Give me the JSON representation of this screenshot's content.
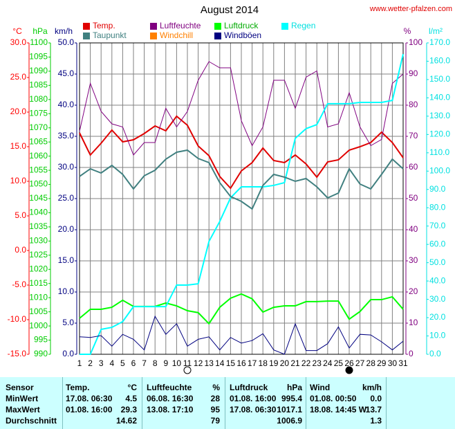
{
  "chart_data": {
    "type": "line",
    "title": "August 2014",
    "source": "www.wetter-pfalzen.com",
    "x": [
      1,
      2,
      3,
      4,
      5,
      6,
      7,
      8,
      9,
      10,
      11,
      12,
      13,
      14,
      15,
      16,
      17,
      18,
      19,
      20,
      21,
      22,
      23,
      24,
      25,
      26,
      27,
      28,
      29,
      30,
      31
    ],
    "xlim": [
      1,
      31
    ],
    "ylabel": "°C",
    "ylim": [
      -15,
      30
    ],
    "yticks": [
      {
        "value": -15,
        "label": "-15.0"
      },
      {
        "value": -10,
        "label": "-10.0"
      },
      {
        "value": -5,
        "label": "-5.0"
      },
      {
        "value": 0,
        "label": "0.0"
      },
      {
        "value": 5,
        "label": "5.0"
      },
      {
        "value": 10,
        "label": "10.0"
      },
      {
        "value": 15,
        "label": "15.0"
      },
      {
        "value": 20,
        "label": "20.0"
      },
      {
        "value": 25,
        "label": "25.0"
      },
      {
        "value": 30,
        "label": "30.0"
      }
    ],
    "y2label": "hPa",
    "y2lim": [
      990,
      1100
    ],
    "y2ticks": [
      990,
      995,
      1000,
      1005,
      1010,
      1015,
      1020,
      1025,
      1030,
      1035,
      1040,
      1045,
      1050,
      1055,
      1060,
      1065,
      1070,
      1075,
      1080,
      1085,
      1090,
      1095,
      1100
    ],
    "y3label": "km/h",
    "y3lim": [
      0,
      50
    ],
    "y3ticks": [
      {
        "value": 0,
        "label": "0.0"
      },
      {
        "value": 5,
        "label": "5.0"
      },
      {
        "value": 10,
        "label": "10.0"
      },
      {
        "value": 15,
        "label": "15.0"
      },
      {
        "value": 20,
        "label": "20.0"
      },
      {
        "value": 25,
        "label": "25.0"
      },
      {
        "value": 30,
        "label": "30.0"
      },
      {
        "value": 35,
        "label": "35.0"
      },
      {
        "value": 40,
        "label": "40.0"
      },
      {
        "value": 45,
        "label": "45.0"
      },
      {
        "value": 50,
        "label": "50.0"
      }
    ],
    "y4label": "%",
    "y4lim": [
      0,
      100
    ],
    "y4ticks": [
      0,
      10,
      20,
      30,
      40,
      50,
      60,
      70,
      80,
      90,
      100
    ],
    "y5label": "l/m²",
    "y5lim": [
      0,
      170
    ],
    "y5ticks": [
      {
        "value": 0,
        "label": "0.0"
      },
      {
        "value": 10,
        "label": "10.0"
      },
      {
        "value": 20,
        "label": "20.0"
      },
      {
        "value": 30,
        "label": "30.0"
      },
      {
        "value": 40,
        "label": "40.0"
      },
      {
        "value": 50,
        "label": "50.0"
      },
      {
        "value": 60,
        "label": "60.0"
      },
      {
        "value": 70,
        "label": "70.0"
      },
      {
        "value": 80,
        "label": "80.0"
      },
      {
        "value": 90,
        "label": "90.0"
      },
      {
        "value": 100,
        "label": "100.0"
      },
      {
        "value": 110,
        "label": "110.0"
      },
      {
        "value": 120,
        "label": "120.0"
      },
      {
        "value": 130,
        "label": "130.0"
      },
      {
        "value": 140,
        "label": "140.0"
      },
      {
        "value": 150,
        "label": "150.0"
      },
      {
        "value": 160,
        "label": "160.0"
      },
      {
        "value": 170,
        "label": "170.0"
      }
    ],
    "axis_colors": {
      "y": "#ff0000",
      "y2": "#00cc00",
      "y3": "#000080",
      "y4": "#800080",
      "y5": "#00e0e0"
    },
    "grid": "y3",
    "series": [
      {
        "name": "Temp.",
        "color": "#e00000",
        "axis": "y",
        "values": [
          17.0,
          13.8,
          15.5,
          17.4,
          15.7,
          16.0,
          16.9,
          18.0,
          17.3,
          19.4,
          18.1,
          15.1,
          13.7,
          10.7,
          9.0,
          11.5,
          12.7,
          14.8,
          13.0,
          12.7,
          13.8,
          12.5,
          10.6,
          12.8,
          13.1,
          14.5,
          15.0,
          15.6,
          17.1,
          15.6,
          13.4
        ]
      },
      {
        "name": "Luftfeuchte",
        "color": "#800080",
        "axis": "y4",
        "values": [
          71.6,
          87,
          78,
          74,
          73,
          64,
          68,
          68,
          79,
          73,
          78,
          88,
          94,
          92,
          92,
          75,
          67,
          73,
          88,
          88,
          79,
          89,
          91,
          73,
          74,
          84,
          73,
          67,
          69,
          87,
          90
        ]
      },
      {
        "name": "Luftdruck",
        "color": "#00ff00",
        "axis": "y2",
        "values": [
          1002.7,
          1005.9,
          1005.9,
          1006.6,
          1009.1,
          1006.9,
          1006.9,
          1006.9,
          1008.1,
          1007.1,
          1005.4,
          1004.7,
          1000.8,
          1006.6,
          1009.8,
          1011.3,
          1009.6,
          1004.9,
          1006.6,
          1007.1,
          1007.1,
          1008.6,
          1008.6,
          1008.8,
          1008.8,
          1002.4,
          1005.1,
          1009.3,
          1009.3,
          1010.3,
          1005.9
        ]
      },
      {
        "name": "Regen",
        "color": "#00ffff",
        "axis": "y5",
        "values": [
          0,
          0,
          13.6,
          14.7,
          17.8,
          26,
          26,
          26,
          26,
          37.8,
          37.8,
          38.5,
          61.6,
          72.5,
          85.4,
          91.4,
          91.4,
          91.4,
          92.2,
          93.7,
          117.9,
          123.2,
          125.4,
          136.8,
          136.8,
          136.8,
          137.5,
          137.5,
          137.5,
          138.6,
          163.9
        ]
      },
      {
        "name": "Taupunkt",
        "color": "#408080",
        "axis": "y",
        "values": [
          10.7,
          11.8,
          11.2,
          12.3,
          11.0,
          8.9,
          10.8,
          11.6,
          13.2,
          14.2,
          14.5,
          13.3,
          12.7,
          9.8,
          7.8,
          7.1,
          6.0,
          9.4,
          11.0,
          10.6,
          10.0,
          10.4,
          9.2,
          7.6,
          8.3,
          11.8,
          9.6,
          8.9,
          11.0,
          13.2,
          11.8
        ]
      },
      {
        "name": "Windchill",
        "color": "#ff8000",
        "axis": "y"
      },
      {
        "name": "Windböen",
        "color": "#000080",
        "axis": "y3",
        "values": [
          2.8,
          2.7,
          3.0,
          1.3,
          3.2,
          2.4,
          0.7,
          6.1,
          3.2,
          4.9,
          1.3,
          2.4,
          2.8,
          0.7,
          2.7,
          1.8,
          2.2,
          3.3,
          0.7,
          0,
          4.9,
          0.6,
          0.6,
          1.7,
          4.4,
          1.0,
          3.2,
          3.1,
          2.0,
          0.7,
          2.1
        ]
      }
    ]
  },
  "table": {
    "header": [
      "Sensor",
      "Temp.",
      "°C",
      "Luftfeuchte",
      "%",
      "Luftdruck",
      "hPa",
      "Wind",
      "km/h"
    ],
    "rows": [
      [
        "MinWert",
        "17.08. 06:30",
        "4.5",
        "06.08. 16:30",
        "28",
        "01.08. 16:00",
        "995.4",
        "01.08. 00:50",
        "0.0"
      ],
      [
        "MaxWert",
        "01.08. 16:00",
        "29.3",
        "13.08. 17:10",
        "95",
        "17.08. 06:30",
        "1017.1",
        "18.08. 14:45 W",
        "13.7"
      ],
      [
        "Durchschnitt",
        null,
        "14.62",
        null,
        "79",
        null,
        "1006.9",
        null,
        "1.3"
      ]
    ]
  }
}
